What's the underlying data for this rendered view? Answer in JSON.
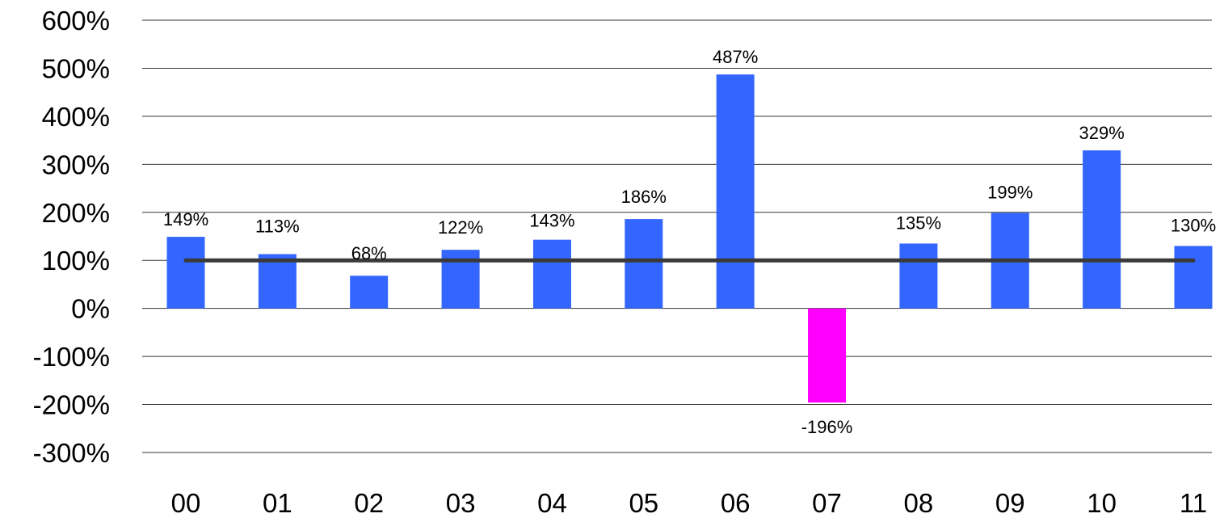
{
  "chart_data": {
    "type": "bar",
    "title": "",
    "xlabel": "",
    "ylabel": "",
    "categories": [
      "00",
      "01",
      "02",
      "03",
      "04",
      "05",
      "06",
      "07",
      "08",
      "09",
      "10",
      "11"
    ],
    "values": [
      149,
      113,
      68,
      122,
      143,
      186,
      487,
      -196,
      135,
      199,
      329,
      130
    ],
    "data_labels": [
      "149%",
      "113%",
      "68%",
      "122%",
      "143%",
      "186%",
      "487%",
      "-196%",
      "135%",
      "199%",
      "329%",
      "130%"
    ],
    "ylim": [
      -300,
      600
    ],
    "yticks": [
      600,
      500,
      400,
      300,
      200,
      100,
      0,
      -100,
      -200,
      -300
    ],
    "ytick_labels": [
      "600%",
      "500%",
      "400%",
      "300%",
      "200%",
      "100%",
      "0%",
      "-100%",
      "-200%",
      "-300%"
    ],
    "reference_line": {
      "value": 100
    },
    "grid": true,
    "legend": "none",
    "colors": {
      "positive": "#3366FF",
      "negative": "#FF00FF",
      "reference_line": "#3A3A3A",
      "grid": "#333333"
    }
  }
}
